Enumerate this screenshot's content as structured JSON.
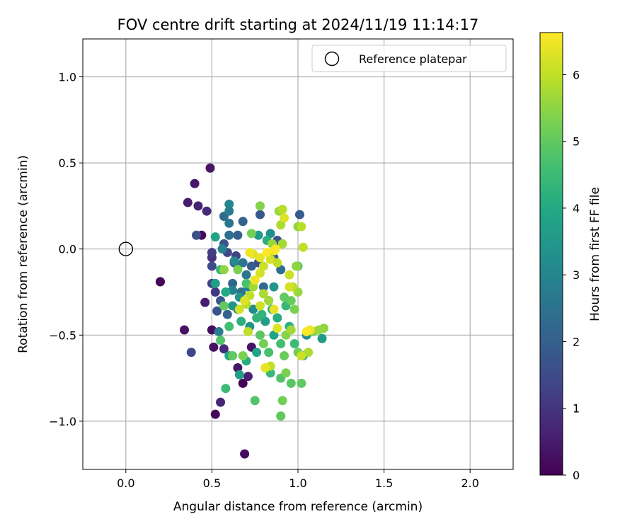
{
  "chart_data": {
    "type": "scatter",
    "title": "FOV centre drift starting at 2024/11/19 11:14:17",
    "xlabel": "Angular distance from reference (arcmin)",
    "ylabel": "Rotation from reference (arcmin)",
    "xlim": [
      -0.25,
      2.25
    ],
    "ylim": [
      -1.28,
      1.22
    ],
    "xticks": [
      0.0,
      0.5,
      1.0,
      1.5,
      2.0
    ],
    "xtick_labels": [
      "0.0",
      "0.5",
      "1.0",
      "1.5",
      "2.0"
    ],
    "yticks": [
      -1.0,
      -0.5,
      0.0,
      0.5,
      1.0
    ],
    "ytick_labels": [
      "−1.0",
      "−0.5",
      "0.0",
      "0.5",
      "1.0"
    ],
    "grid": true,
    "legend": {
      "position": "top-right",
      "entries": [
        "Reference platepar"
      ]
    },
    "reference_point": {
      "x": 0.0,
      "y": 0.0
    },
    "colorbar": {
      "label": "Hours from first FF file",
      "range": [
        0,
        6.63
      ],
      "ticks": [
        0,
        1,
        2,
        3,
        4,
        5,
        6
      ],
      "tick_labels": [
        "0",
        "1",
        "2",
        "3",
        "4",
        "5",
        "6"
      ],
      "colormap": "viridis"
    },
    "points": [
      {
        "x": 0.2,
        "y": -0.19,
        "h": 0.05
      },
      {
        "x": 0.2,
        "y": -0.19,
        "h": 0.1
      },
      {
        "x": 0.34,
        "y": -0.47,
        "h": 0.3
      },
      {
        "x": 0.36,
        "y": 0.27,
        "h": 0.5
      },
      {
        "x": 0.4,
        "y": 0.38,
        "h": 0.4
      },
      {
        "x": 0.42,
        "y": 0.25,
        "h": 0.6
      },
      {
        "x": 0.47,
        "y": 0.22,
        "h": 0.8
      },
      {
        "x": 0.49,
        "y": 0.47,
        "h": 0.4
      },
      {
        "x": 0.38,
        "y": -0.6,
        "h": 1.4
      },
      {
        "x": 0.41,
        "y": 0.08,
        "h": 1.6
      },
      {
        "x": 0.44,
        "y": 0.08,
        "h": 0.2
      },
      {
        "x": 0.46,
        "y": -0.31,
        "h": 0.5
      },
      {
        "x": 0.5,
        "y": -0.47,
        "h": 0.2
      },
      {
        "x": 0.51,
        "y": -0.57,
        "h": 0.3
      },
      {
        "x": 0.52,
        "y": -0.96,
        "h": 0.1
      },
      {
        "x": 0.55,
        "y": -0.89,
        "h": 0.7
      },
      {
        "x": 0.57,
        "y": -0.58,
        "h": 0.8
      },
      {
        "x": 0.68,
        "y": -0.78,
        "h": 0.1
      },
      {
        "x": 0.69,
        "y": -1.19,
        "h": 0.2
      },
      {
        "x": 0.65,
        "y": -0.69,
        "h": 0.4
      },
      {
        "x": 0.71,
        "y": -0.74,
        "h": 0.6
      },
      {
        "x": 0.73,
        "y": -0.57,
        "h": 0.3
      },
      {
        "x": 0.5,
        "y": -0.02,
        "h": 1.2
      },
      {
        "x": 0.5,
        "y": -0.05,
        "h": 1.0
      },
      {
        "x": 0.5,
        "y": -0.1,
        "h": 1.5
      },
      {
        "x": 0.5,
        "y": -0.2,
        "h": 1.3
      },
      {
        "x": 0.52,
        "y": -0.25,
        "h": 1.1
      },
      {
        "x": 0.55,
        "y": -0.3,
        "h": 1.8
      },
      {
        "x": 0.57,
        "y": 0.03,
        "h": 1.7
      },
      {
        "x": 0.57,
        "y": 0.19,
        "h": 2.3
      },
      {
        "x": 0.59,
        "y": -0.02,
        "h": 1.4
      },
      {
        "x": 0.6,
        "y": 0.08,
        "h": 2.4
      },
      {
        "x": 0.6,
        "y": 0.22,
        "h": 2.8
      },
      {
        "x": 0.6,
        "y": 0.26,
        "h": 3.0
      },
      {
        "x": 0.63,
        "y": -0.08,
        "h": 1.9
      },
      {
        "x": 0.65,
        "y": 0.08,
        "h": 2.0
      },
      {
        "x": 0.68,
        "y": 0.16,
        "h": 2.1
      },
      {
        "x": 0.62,
        "y": -0.2,
        "h": 2.2
      },
      {
        "x": 0.67,
        "y": -0.25,
        "h": 2.5
      },
      {
        "x": 0.7,
        "y": -0.15,
        "h": 2.6
      },
      {
        "x": 0.73,
        "y": -0.1,
        "h": 1.9
      },
      {
        "x": 0.77,
        "y": -0.08,
        "h": 1.6
      },
      {
        "x": 0.78,
        "y": 0.2,
        "h": 1.8
      },
      {
        "x": 0.8,
        "y": -0.22,
        "h": 2.3
      },
      {
        "x": 0.83,
        "y": -0.3,
        "h": 2.7
      },
      {
        "x": 0.86,
        "y": -0.05,
        "h": 2.0
      },
      {
        "x": 0.88,
        "y": 0.05,
        "h": 1.7
      },
      {
        "x": 0.9,
        "y": -0.12,
        "h": 2.4
      },
      {
        "x": 1.01,
        "y": 0.2,
        "h": 1.9
      },
      {
        "x": 0.84,
        "y": 0.09,
        "h": 3.3
      },
      {
        "x": 0.77,
        "y": 0.08,
        "h": 3.6
      },
      {
        "x": 0.52,
        "y": 0.07,
        "h": 3.8
      },
      {
        "x": 0.55,
        "y": -0.12,
        "h": 4.4
      },
      {
        "x": 0.58,
        "y": -0.25,
        "h": 4.0
      },
      {
        "x": 0.62,
        "y": -0.33,
        "h": 3.5
      },
      {
        "x": 0.65,
        "y": -0.35,
        "h": 3.2
      },
      {
        "x": 0.67,
        "y": -0.42,
        "h": 4.2
      },
      {
        "x": 0.6,
        "y": -0.45,
        "h": 4.6
      },
      {
        "x": 0.55,
        "y": -0.53,
        "h": 4.8
      },
      {
        "x": 0.6,
        "y": -0.62,
        "h": 3.9
      },
      {
        "x": 0.66,
        "y": -0.73,
        "h": 3.7
      },
      {
        "x": 0.7,
        "y": -0.65,
        "h": 4.1
      },
      {
        "x": 0.58,
        "y": -0.81,
        "h": 4.5
      },
      {
        "x": 0.75,
        "y": -0.88,
        "h": 4.8
      },
      {
        "x": 0.9,
        "y": -0.97,
        "h": 5.0
      },
      {
        "x": 0.72,
        "y": -0.45,
        "h": 3.4
      },
      {
        "x": 0.76,
        "y": -0.4,
        "h": 4.3
      },
      {
        "x": 0.78,
        "y": -0.5,
        "h": 4.9
      },
      {
        "x": 0.8,
        "y": -0.55,
        "h": 5.2
      },
      {
        "x": 0.83,
        "y": -0.6,
        "h": 4.7
      },
      {
        "x": 0.84,
        "y": -0.72,
        "h": 4.4
      },
      {
        "x": 0.86,
        "y": -0.5,
        "h": 3.8
      },
      {
        "x": 0.88,
        "y": -0.4,
        "h": 4.1
      },
      {
        "x": 0.9,
        "y": -0.55,
        "h": 4.6
      },
      {
        "x": 0.92,
        "y": -0.62,
        "h": 5.1
      },
      {
        "x": 0.93,
        "y": -0.72,
        "h": 5.3
      },
      {
        "x": 0.96,
        "y": -0.78,
        "h": 4.9
      },
      {
        "x": 1.02,
        "y": -0.78,
        "h": 5.0
      },
      {
        "x": 1.03,
        "y": -0.62,
        "h": 3.9
      },
      {
        "x": 1.05,
        "y": -0.5,
        "h": 3.3
      },
      {
        "x": 1.09,
        "y": -0.48,
        "h": 5.4
      },
      {
        "x": 1.12,
        "y": -0.47,
        "h": 5.6
      },
      {
        "x": 1.15,
        "y": -0.46,
        "h": 5.5
      },
      {
        "x": 1.14,
        "y": -0.52,
        "h": 3.6
      },
      {
        "x": 0.85,
        "y": -0.35,
        "h": 4.0
      },
      {
        "x": 0.95,
        "y": -0.45,
        "h": 4.2
      },
      {
        "x": 0.98,
        "y": -0.55,
        "h": 4.5
      },
      {
        "x": 1.0,
        "y": -0.6,
        "h": 5.2
      },
      {
        "x": 0.73,
        "y": 0.09,
        "h": 5.2
      },
      {
        "x": 0.78,
        "y": 0.25,
        "h": 5.4
      },
      {
        "x": 0.89,
        "y": 0.22,
        "h": 5.6
      },
      {
        "x": 0.91,
        "y": 0.23,
        "h": 5.9
      },
      {
        "x": 0.92,
        "y": 0.18,
        "h": 6.3
      },
      {
        "x": 0.9,
        "y": 0.14,
        "h": 5.8
      },
      {
        "x": 1.0,
        "y": 0.13,
        "h": 5.5
      },
      {
        "x": 1.02,
        "y": 0.13,
        "h": 5.9
      },
      {
        "x": 1.03,
        "y": 0.01,
        "h": 6.0
      },
      {
        "x": 0.91,
        "y": 0.03,
        "h": 5.7
      },
      {
        "x": 0.95,
        "y": -0.15,
        "h": 6.1
      },
      {
        "x": 0.99,
        "y": -0.1,
        "h": 5.5
      },
      {
        "x": 0.97,
        "y": -0.22,
        "h": 5.9
      },
      {
        "x": 0.95,
        "y": -0.22,
        "h": 6.2
      },
      {
        "x": 0.72,
        "y": -0.02,
        "h": 6.5
      },
      {
        "x": 0.74,
        "y": -0.03,
        "h": 6.3
      },
      {
        "x": 0.78,
        "y": -0.05,
        "h": 6.4
      },
      {
        "x": 0.8,
        "y": -0.1,
        "h": 6.1
      },
      {
        "x": 0.82,
        "y": -0.02,
        "h": 6.6
      },
      {
        "x": 0.84,
        "y": -0.06,
        "h": 6.2
      },
      {
        "x": 0.86,
        "y": -0.01,
        "h": 6.5
      },
      {
        "x": 0.88,
        "y": -0.08,
        "h": 6.0
      },
      {
        "x": 0.87,
        "y": 0.0,
        "h": 6.6
      },
      {
        "x": 0.85,
        "y": 0.03,
        "h": 5.6
      },
      {
        "x": 0.75,
        "y": -0.18,
        "h": 6.5
      },
      {
        "x": 0.78,
        "y": -0.14,
        "h": 6.2
      },
      {
        "x": 0.8,
        "y": -0.26,
        "h": 5.8
      },
      {
        "x": 0.83,
        "y": -0.3,
        "h": 5.7
      },
      {
        "x": 0.78,
        "y": -0.33,
        "h": 6.1
      },
      {
        "x": 0.86,
        "y": -0.35,
        "h": 6.4
      },
      {
        "x": 0.88,
        "y": -0.46,
        "h": 6.3
      },
      {
        "x": 0.84,
        "y": -0.68,
        "h": 6.0
      },
      {
        "x": 0.81,
        "y": -0.69,
        "h": 6.4
      },
      {
        "x": 1.05,
        "y": -0.48,
        "h": 6.6
      },
      {
        "x": 1.07,
        "y": -0.47,
        "h": 6.5
      },
      {
        "x": 1.02,
        "y": -0.62,
        "h": 6.1
      },
      {
        "x": 1.06,
        "y": -0.6,
        "h": 5.8
      },
      {
        "x": 0.71,
        "y": -0.48,
        "h": 6.0
      },
      {
        "x": 0.69,
        "y": -0.3,
        "h": 6.3
      },
      {
        "x": 0.72,
        "y": -0.27,
        "h": 6.0
      },
      {
        "x": 0.74,
        "y": -0.22,
        "h": 5.7
      },
      {
        "x": 0.68,
        "y": -0.62,
        "h": 5.3
      },
      {
        "x": 0.62,
        "y": -0.62,
        "h": 5.0
      },
      {
        "x": 0.57,
        "y": -0.33,
        "h": 5.0
      },
      {
        "x": 0.57,
        "y": -0.12,
        "h": 5.5
      },
      {
        "x": 0.65,
        "y": -0.12,
        "h": 5.3
      },
      {
        "x": 0.7,
        "y": -0.2,
        "h": 4.7
      },
      {
        "x": 0.96,
        "y": -0.3,
        "h": 5.1
      },
      {
        "x": 0.98,
        "y": -0.35,
        "h": 5.3
      },
      {
        "x": 1.0,
        "y": -0.25,
        "h": 5.6
      },
      {
        "x": 0.92,
        "y": -0.28,
        "h": 5.0
      },
      {
        "x": 0.9,
        "y": -0.75,
        "h": 4.8
      },
      {
        "x": 0.91,
        "y": -0.88,
        "h": 5.2
      },
      {
        "x": 0.93,
        "y": -0.5,
        "h": 5.4
      },
      {
        "x": 0.96,
        "y": -0.47,
        "h": 5.7
      },
      {
        "x": 0.7,
        "y": -0.32,
        "h": 5.9
      },
      {
        "x": 0.66,
        "y": -0.35,
        "h": 6.2
      },
      {
        "x": 0.64,
        "y": -0.04,
        "h": 1.3
      },
      {
        "x": 0.59,
        "y": -0.38,
        "h": 2.1
      },
      {
        "x": 0.62,
        "y": -0.24,
        "h": 2.9
      },
      {
        "x": 0.63,
        "y": -0.07,
        "h": 3.1
      },
      {
        "x": 0.66,
        "y": -0.28,
        "h": 3.4
      },
      {
        "x": 0.68,
        "y": -0.08,
        "h": 2.6
      },
      {
        "x": 0.71,
        "y": -0.22,
        "h": 3.0
      },
      {
        "x": 0.74,
        "y": -0.35,
        "h": 3.2
      },
      {
        "x": 0.81,
        "y": -0.42,
        "h": 3.7
      },
      {
        "x": 0.76,
        "y": -0.6,
        "h": 3.9
      },
      {
        "x": 0.79,
        "y": -0.38,
        "h": 4.3
      },
      {
        "x": 0.82,
        "y": 0.05,
        "h": 4.1
      },
      {
        "x": 0.86,
        "y": -0.22,
        "h": 3.5
      },
      {
        "x": 0.93,
        "y": -0.33,
        "h": 4.4
      },
      {
        "x": 1.0,
        "y": -0.1,
        "h": 4.9
      },
      {
        "x": 0.54,
        "y": -0.48,
        "h": 2.8
      },
      {
        "x": 0.52,
        "y": -0.2,
        "h": 3.7
      },
      {
        "x": 0.56,
        "y": 0.0,
        "h": 3.0
      },
      {
        "x": 0.6,
        "y": 0.15,
        "h": 2.6
      },
      {
        "x": 0.53,
        "y": -0.36,
        "h": 1.7
      }
    ]
  }
}
